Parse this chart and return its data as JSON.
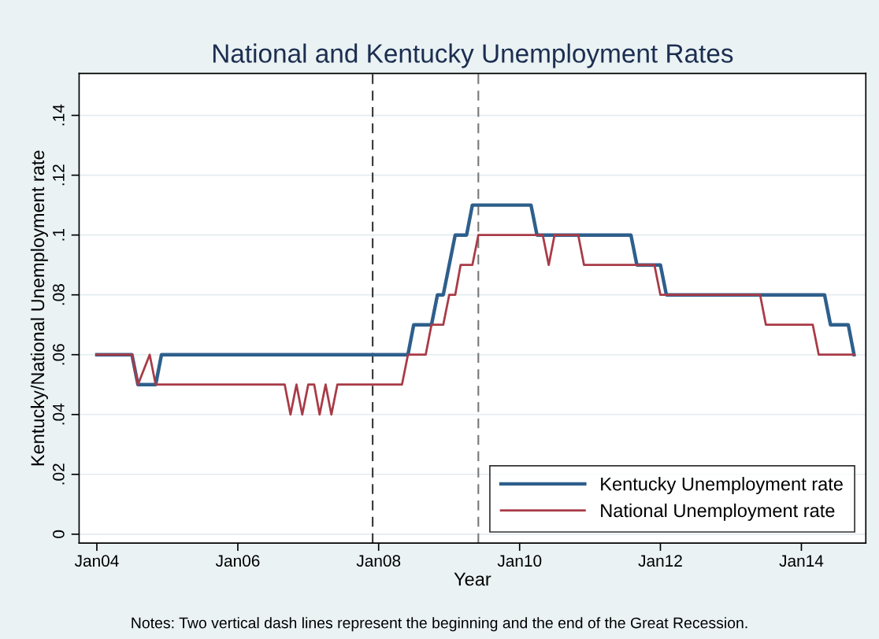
{
  "chart_data": {
    "type": "line",
    "title": "National and Kentucky Unemployment Rates",
    "xlabel": "Year",
    "ylabel": "Kentucky/National Unemployment rate",
    "annotations": [
      "Notes: Two vertical dash lines represent the beginning and the end of the Great Recession."
    ],
    "series": [
      {
        "name": "Kentucky Unemployment rate",
        "color": "#2e5f8c",
        "x": [
          "2004-01",
          "2004-07",
          "2004-08",
          "2004-11",
          "2004-12",
          "2008-06",
          "2008-07",
          "2008-10",
          "2008-11",
          "2008-12",
          "2009-02",
          "2009-04",
          "2009-05",
          "2010-03",
          "2010-04",
          "2011-08",
          "2011-09",
          "2012-01",
          "2012-02",
          "2014-05",
          "2014-06",
          "2014-09",
          "2014-10"
        ],
        "values": [
          0.06,
          0.06,
          0.05,
          0.05,
          0.06,
          0.06,
          0.07,
          0.07,
          0.08,
          0.08,
          0.1,
          0.1,
          0.11,
          0.11,
          0.1,
          0.1,
          0.09,
          0.09,
          0.08,
          0.08,
          0.07,
          0.07,
          0.06
        ]
      },
      {
        "name": "National Unemployment rate",
        "color": "#a93b47",
        "x": [
          "2004-01",
          "2004-07",
          "2004-08",
          "2004-10",
          "2004-11",
          "2006-09",
          "2006-10",
          "2006-11",
          "2006-12",
          "2007-01",
          "2007-02",
          "2007-03",
          "2007-04",
          "2007-05",
          "2007-06",
          "2008-05",
          "2008-06",
          "2008-09",
          "2008-10",
          "2008-12",
          "2009-01",
          "2009-02",
          "2009-03",
          "2009-05",
          "2009-06",
          "2010-05",
          "2010-06",
          "2010-07",
          "2010-11",
          "2010-12",
          "2011-12",
          "2012-01",
          "2013-06",
          "2013-07",
          "2014-03",
          "2014-04",
          "2014-10"
        ],
        "values": [
          0.06,
          0.06,
          0.05,
          0.06,
          0.05,
          0.05,
          0.04,
          0.05,
          0.04,
          0.05,
          0.05,
          0.04,
          0.05,
          0.04,
          0.05,
          0.05,
          0.06,
          0.06,
          0.07,
          0.07,
          0.08,
          0.08,
          0.09,
          0.09,
          0.1,
          0.1,
          0.09,
          0.1,
          0.1,
          0.09,
          0.09,
          0.08,
          0.08,
          0.07,
          0.07,
          0.06,
          0.06
        ]
      }
    ],
    "xlim": [
      "2003-10",
      "2014-12"
    ],
    "xticks": [
      {
        "value": "2004-01",
        "label": "Jan04"
      },
      {
        "value": "2006-01",
        "label": "Jan06"
      },
      {
        "value": "2008-01",
        "label": "Jan08"
      },
      {
        "value": "2010-01",
        "label": "Jan10"
      },
      {
        "value": "2012-01",
        "label": "Jan12"
      },
      {
        "value": "2014-01",
        "label": "Jan14"
      }
    ],
    "ylim": [
      -0.003,
      0.154
    ],
    "yticks": [
      {
        "value": 0,
        "label": "0"
      },
      {
        "value": 0.02,
        "label": ".02"
      },
      {
        "value": 0.04,
        "label": ".04"
      },
      {
        "value": 0.06,
        "label": ".06"
      },
      {
        "value": 0.08,
        "label": ".08"
      },
      {
        "value": 0.1,
        "label": ".1"
      },
      {
        "value": 0.12,
        "label": ".12"
      },
      {
        "value": 0.14,
        "label": ".14"
      }
    ],
    "ref_lines": [
      {
        "axis": "x",
        "value": "2007-12",
        "label": null,
        "color": "#333333",
        "line_style": "dashed"
      },
      {
        "axis": "x",
        "value": "2009-06",
        "label": null,
        "color": "#777777",
        "line_style": "dashed"
      }
    ],
    "grid": "y",
    "legend": "bottom right",
    "marker": "none",
    "line_style": "solid"
  }
}
